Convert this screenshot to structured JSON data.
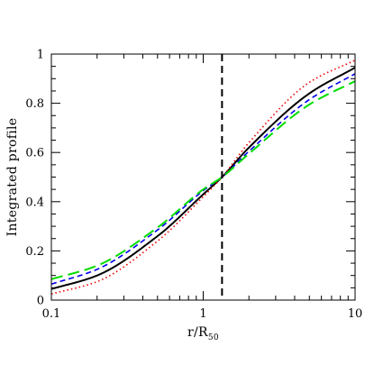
{
  "chart_data": {
    "type": "line",
    "xscale": "log",
    "xlim": [
      0.1,
      10
    ],
    "ylim": [
      0,
      1
    ],
    "xlabel": "r/R",
    "xlabel_subscript": "50",
    "ylabel": "Integrated profile",
    "xticks": [
      {
        "value": 0.1,
        "label": "0.1"
      },
      {
        "value": 1,
        "label": "1"
      },
      {
        "value": 10,
        "label": "10"
      }
    ],
    "yticks": [
      {
        "value": 0,
        "label": "0"
      },
      {
        "value": 0.2,
        "label": "0.2"
      },
      {
        "value": 0.4,
        "label": "0.4"
      },
      {
        "value": 0.6,
        "label": "0.6"
      },
      {
        "value": 0.8,
        "label": "0.8"
      },
      {
        "value": 1,
        "label": "1"
      }
    ],
    "vertical_line": {
      "x": 1.33,
      "color": "#000000",
      "style": "dashed"
    },
    "grid": false,
    "legend": "none",
    "series": [
      {
        "color": "#000000",
        "style": "solid",
        "x": [
          0.1,
          0.2,
          0.5,
          1,
          1.33,
          2,
          5,
          10
        ],
        "y": [
          0.045,
          0.1,
          0.26,
          0.43,
          0.5,
          0.62,
          0.84,
          0.945
        ]
      },
      {
        "color": "#ee0000",
        "style": "dotted",
        "x": [
          0.1,
          0.2,
          0.5,
          1,
          1.33,
          2,
          5,
          10
        ],
        "y": [
          0.025,
          0.075,
          0.24,
          0.42,
          0.5,
          0.64,
          0.885,
          0.975
        ]
      },
      {
        "color": "#0000ee",
        "style": "dashed",
        "x": [
          0.1,
          0.2,
          0.5,
          1,
          1.33,
          2,
          5,
          10
        ],
        "y": [
          0.065,
          0.125,
          0.285,
          0.445,
          0.5,
          0.605,
          0.815,
          0.92
        ]
      },
      {
        "color": "#00dd00",
        "style": "longdash",
        "x": [
          0.1,
          0.2,
          0.5,
          1,
          1.33,
          2,
          5,
          10
        ],
        "y": [
          0.085,
          0.14,
          0.295,
          0.45,
          0.5,
          0.595,
          0.795,
          0.89
        ]
      }
    ]
  }
}
